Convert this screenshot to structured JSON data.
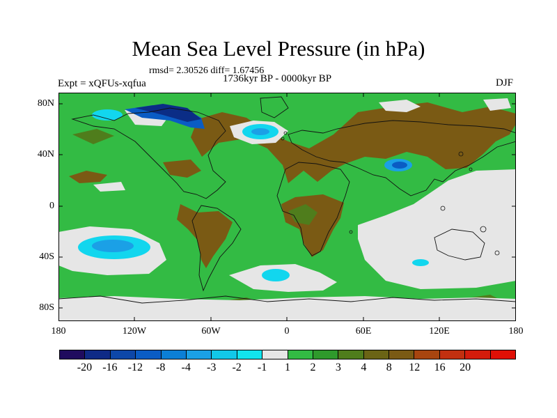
{
  "figure": {
    "title": "Mean Sea Level Pressure (in hPa)",
    "stats": "rmsd= 2.30526 diff= 1.67456",
    "period": "1736kyr BP - 0000kyr BP",
    "experiment": "Expt = xQFUs-xqfua",
    "season": "DJF"
  },
  "map": {
    "lat_labels": [
      "80N",
      "40N",
      "0",
      "40S",
      "80S"
    ],
    "lon_labels": [
      "180",
      "120W",
      "60W",
      "0",
      "60E",
      "120E",
      "180"
    ],
    "colors": {
      "ocean_green": "#33bb44",
      "land_brown": "#7a5a14",
      "olive": "#4f7d1c",
      "light_grey": "#e6e6e6",
      "cyan": "#12d6ee",
      "sky": "#1ba0e6",
      "blue": "#0a5cc4",
      "navy": "#0b2d86"
    },
    "colorbar": {
      "colors": [
        "#1f0b5e",
        "#0e2a86",
        "#0d47a8",
        "#0a5cc4",
        "#0b7fd6",
        "#1ba0e6",
        "#12c8e8",
        "#12e4ee",
        "#e6e6e6",
        "#33bb44",
        "#2f9a2c",
        "#4f7d1c",
        "#6b6415",
        "#7a5a14",
        "#a8450f",
        "#c23010",
        "#d41c0c",
        "#e01006"
      ],
      "labels": [
        "-20",
        "-16",
        "-12",
        "-8",
        "-4",
        "-3",
        "-2",
        "-1",
        "1",
        "2",
        "3",
        "4",
        "8",
        "12",
        "16",
        "20"
      ]
    }
  }
}
